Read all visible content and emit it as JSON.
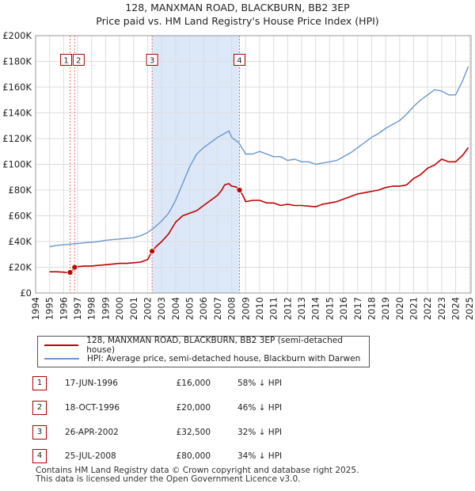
{
  "title_line1": "128, MANXMAN ROAD, BLACKBURN, BB2 3EP",
  "title_line2": "Price paid vs. HM Land Registry's House Price Index (HPI)",
  "chart_data": {
    "type": "line",
    "title": "128, MANXMAN ROAD, BLACKBURN, BB2 3EP",
    "subtitle": "Price paid vs. HM Land Registry's House Price Index (HPI)",
    "xlabel": "",
    "ylabel": "",
    "xlim": [
      1994.0,
      2025.1
    ],
    "ylim": [
      0,
      200000
    ],
    "x_ticks": [
      1994,
      1995,
      1996,
      1997,
      1998,
      1999,
      2000,
      2001,
      2002,
      2003,
      2004,
      2005,
      2006,
      2007,
      2008,
      2009,
      2010,
      2011,
      2012,
      2013,
      2014,
      2015,
      2016,
      2017,
      2018,
      2019,
      2020,
      2021,
      2022,
      2023,
      2024,
      2025
    ],
    "y_ticks": [
      0,
      20000,
      40000,
      60000,
      80000,
      100000,
      120000,
      140000,
      160000,
      180000,
      200000
    ],
    "y_tick_labels": [
      "£0",
      "£20K",
      "£40K",
      "£60K",
      "£80K",
      "£100K",
      "£120K",
      "£140K",
      "£160K",
      "£180K",
      "£200K"
    ],
    "grid": true,
    "colors": {
      "property": "#c00000",
      "hpi": "#6a96d2",
      "shade": "#dce8f8",
      "marker_line": "#e07070"
    },
    "shaded_range": [
      2002.32,
      2008.56
    ],
    "series": [
      {
        "name": "128, MANXMAN ROAD, BLACKBURN, BB2 3EP (semi-detached house)",
        "color": "#c00000",
        "x": [
          1995.0,
          1995.5,
          1996.0,
          1996.3,
          1996.46,
          1996.6,
          1996.79,
          1997.0,
          1997.5,
          1998.0,
          1998.5,
          1999.0,
          1999.5,
          2000.0,
          2000.5,
          2001.0,
          2001.5,
          2002.0,
          2002.32,
          2002.6,
          2003.0,
          2003.5,
          2004.0,
          2004.5,
          2005.0,
          2005.5,
          2006.0,
          2006.5,
          2007.0,
          2007.3,
          2007.5,
          2007.8,
          2008.0,
          2008.3,
          2008.56,
          2008.8,
          2009.0,
          2009.5,
          2010.0,
          2010.5,
          2011.0,
          2011.5,
          2012.0,
          2012.5,
          2013.0,
          2013.5,
          2014.0,
          2014.5,
          2015.0,
          2015.5,
          2016.0,
          2016.5,
          2017.0,
          2017.5,
          2018.0,
          2018.5,
          2019.0,
          2019.5,
          2020.0,
          2020.5,
          2021.0,
          2021.5,
          2022.0,
          2022.5,
          2023.0,
          2023.5,
          2024.0,
          2024.5,
          2024.9
        ],
        "y": [
          16500,
          16500,
          16200,
          15800,
          16000,
          17500,
          20000,
          20500,
          21000,
          21000,
          21500,
          22000,
          22500,
          23000,
          23000,
          23500,
          24000,
          26000,
          32500,
          36000,
          40000,
          46000,
          55000,
          60000,
          62000,
          64000,
          68000,
          72000,
          76000,
          80000,
          84000,
          85000,
          83000,
          82500,
          80000,
          76000,
          71000,
          72000,
          72000,
          70000,
          70000,
          68000,
          69000,
          68000,
          68000,
          67500,
          67000,
          69000,
          70000,
          71000,
          73000,
          75000,
          77000,
          78000,
          79000,
          80000,
          82000,
          83000,
          83000,
          84000,
          89000,
          92000,
          97000,
          99500,
          104000,
          102000,
          102000,
          107000,
          113000
        ]
      },
      {
        "name": "HPI: Average price, semi-detached house, Blackburn with Darwen",
        "color": "#6a96d2",
        "x": [
          1995.0,
          1995.5,
          1996.0,
          1996.5,
          1997.0,
          1997.5,
          1998.0,
          1998.5,
          1999.0,
          1999.5,
          2000.0,
          2000.5,
          2001.0,
          2001.5,
          2002.0,
          2002.5,
          2003.0,
          2003.5,
          2004.0,
          2004.5,
          2005.0,
          2005.5,
          2006.0,
          2006.5,
          2007.0,
          2007.5,
          2007.8,
          2008.0,
          2008.5,
          2009.0,
          2009.5,
          2010.0,
          2010.5,
          2011.0,
          2011.5,
          2012.0,
          2012.5,
          2013.0,
          2013.5,
          2014.0,
          2014.5,
          2015.0,
          2015.5,
          2016.0,
          2016.5,
          2017.0,
          2017.5,
          2018.0,
          2018.5,
          2019.0,
          2019.5,
          2020.0,
          2020.5,
          2021.0,
          2021.5,
          2022.0,
          2022.5,
          2023.0,
          2023.5,
          2024.0,
          2024.5,
          2024.9
        ],
        "y": [
          36000,
          37000,
          37500,
          38000,
          38500,
          39000,
          39500,
          40000,
          41000,
          41500,
          42000,
          42500,
          43000,
          44500,
          47000,
          51000,
          56000,
          62000,
          72000,
          85000,
          98000,
          108000,
          113000,
          117000,
          121000,
          124000,
          126000,
          121000,
          117000,
          108000,
          108000,
          110000,
          108000,
          106000,
          106000,
          103000,
          104000,
          102000,
          102000,
          100000,
          101000,
          102000,
          103000,
          106000,
          109000,
          113000,
          117000,
          121000,
          124000,
          128000,
          131000,
          134000,
          139000,
          145000,
          150000,
          154000,
          158000,
          157000,
          154000,
          154000,
          165000,
          176000
        ]
      }
    ],
    "sale_markers": [
      {
        "label": "1",
        "x": 1996.46,
        "y": 16000
      },
      {
        "label": "2",
        "x": 1996.79,
        "y": 20000
      },
      {
        "label": "3",
        "x": 2002.32,
        "y": 32500
      },
      {
        "label": "4",
        "x": 2008.56,
        "y": 80000
      }
    ],
    "annotation_levels": [
      180000,
      180000,
      180000,
      180000
    ]
  },
  "legend": {
    "property_label": "128, MANXMAN ROAD, BLACKBURN, BB2 3EP (semi-detached house)",
    "hpi_label": "HPI: Average price, semi-detached house, Blackburn with Darwen"
  },
  "sales": [
    {
      "num": "1",
      "date": "17-JUN-1996",
      "price": "£16,000",
      "hpi": "58% ↓ HPI"
    },
    {
      "num": "2",
      "date": "18-OCT-1996",
      "price": "£20,000",
      "hpi": "46% ↓ HPI"
    },
    {
      "num": "3",
      "date": "26-APR-2002",
      "price": "£32,500",
      "hpi": "32% ↓ HPI"
    },
    {
      "num": "4",
      "date": "25-JUL-2008",
      "price": "£80,000",
      "hpi": "34% ↓ HPI"
    }
  ],
  "footer_line1": "Contains HM Land Registry data © Crown copyright and database right 2025.",
  "footer_line2": "This data is licensed under the Open Government Licence v3.0."
}
